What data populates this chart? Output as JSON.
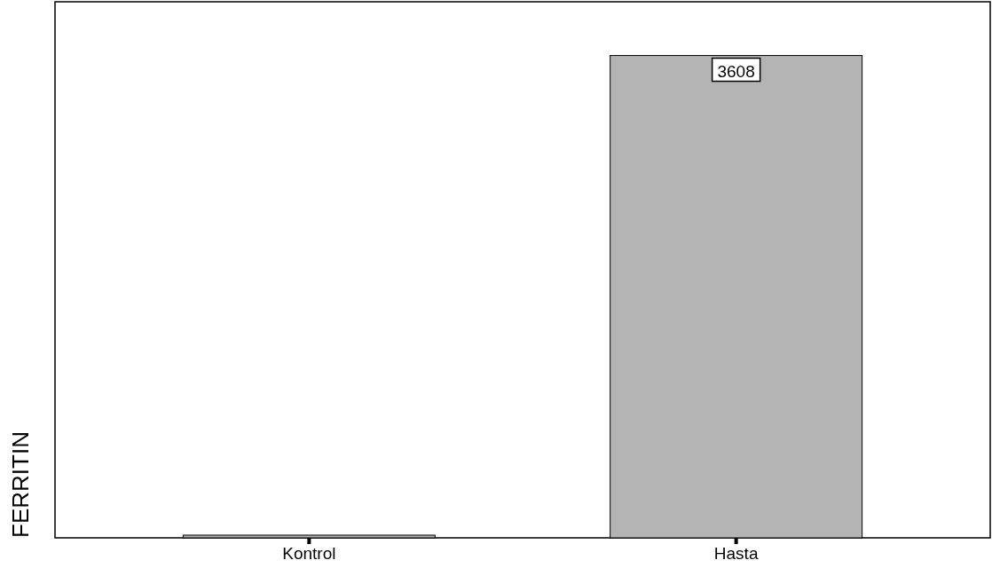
{
  "chart_data": {
    "type": "bar",
    "ylabel": "FERRITIN",
    "categories": [
      "Kontrol",
      "Hasta"
    ],
    "values": [
      20,
      3608
    ],
    "value_labels": [
      null,
      "3608"
    ],
    "color": "#b4b4b4",
    "ylim": [
      0,
      4010
    ],
    "tick_labels": "x"
  }
}
